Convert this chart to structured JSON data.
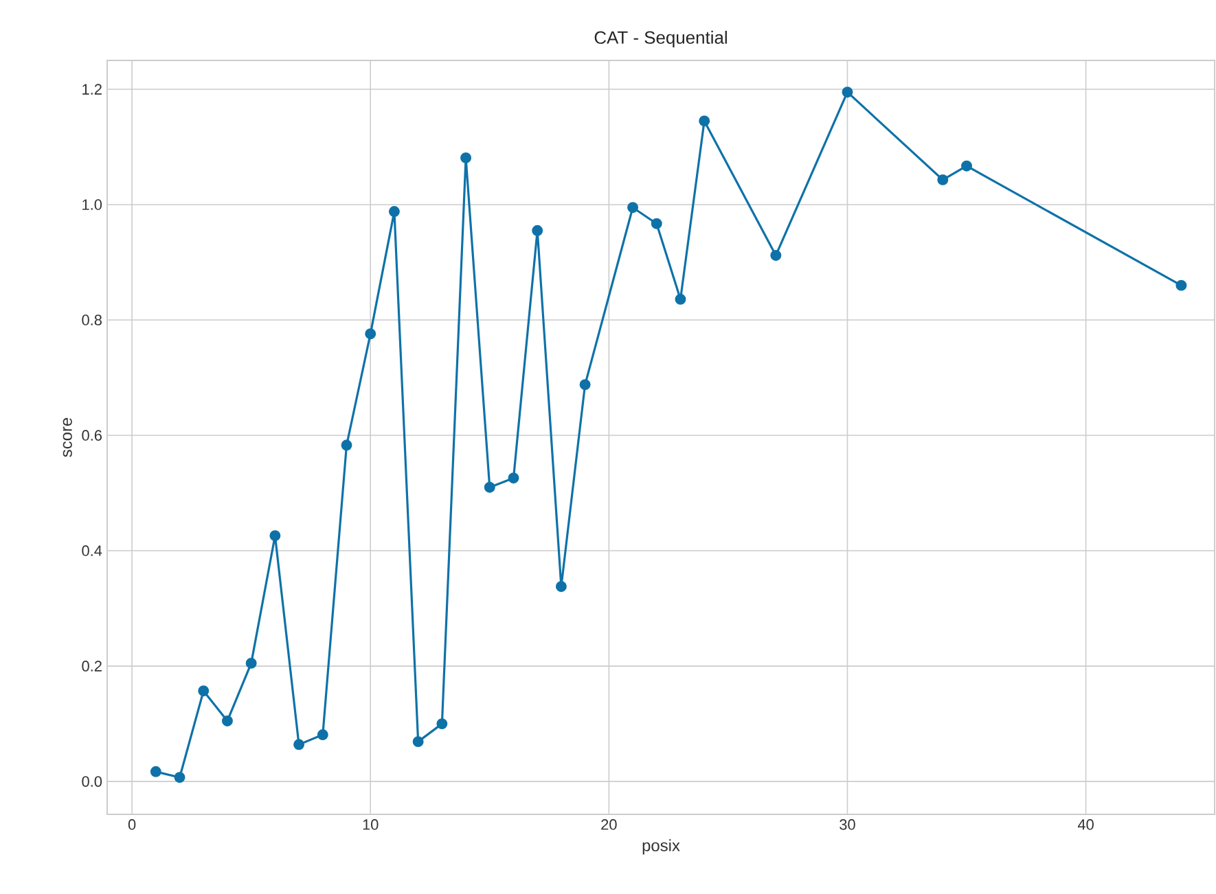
{
  "chart_data": {
    "type": "line",
    "title": "CAT - Sequential",
    "xlabel": "posix",
    "ylabel": "score",
    "x": [
      1,
      2,
      3,
      4,
      5,
      6,
      7,
      8,
      9,
      10,
      11,
      12,
      13,
      14,
      15,
      16,
      17,
      18,
      19,
      21,
      22,
      23,
      24,
      27,
      30,
      34,
      35,
      44
    ],
    "series": [
      {
        "color": "#0e72a8",
        "values": [
          0.017,
          0.007,
          0.157,
          0.105,
          0.205,
          0.426,
          0.064,
          0.081,
          0.583,
          0.776,
          0.988,
          0.069,
          0.1,
          1.081,
          0.51,
          0.526,
          0.955,
          0.338,
          0.688,
          0.995,
          0.967,
          0.836,
          1.145,
          0.912,
          1.195,
          1.043,
          1.067,
          0.86
        ]
      }
    ],
    "xlim": [
      -1.04,
      45.4
    ],
    "ylim": [
      -0.057,
      1.25
    ],
    "xticks": [
      0,
      10,
      20,
      30,
      40
    ],
    "yticks": [
      {
        "value": 0,
        "label": "0.0"
      },
      {
        "value": 0.2,
        "label": "0.2"
      },
      {
        "value": 0.4,
        "label": "0.4"
      },
      {
        "value": 0.6,
        "label": "0.6"
      },
      {
        "value": 0.8,
        "label": "0.8"
      },
      {
        "value": 1.0,
        "label": "1.0"
      },
      {
        "value": 1.2,
        "label": "1.2"
      }
    ],
    "grid": true,
    "marker": "circle",
    "line_style": "solid"
  }
}
